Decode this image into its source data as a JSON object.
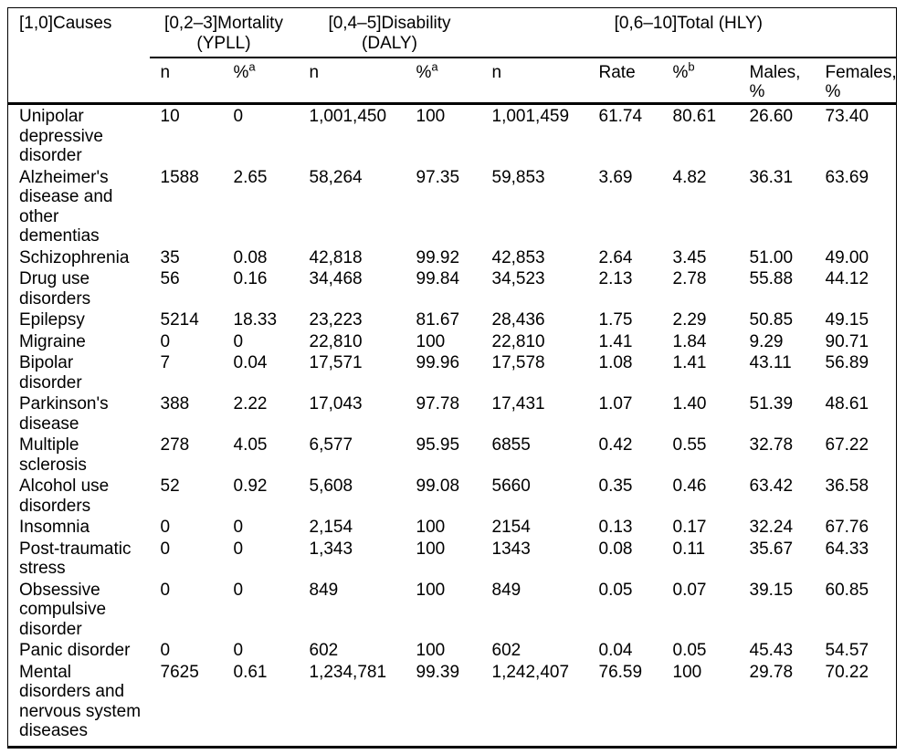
{
  "page": {
    "background": "#ffffff",
    "text_color": "#000000",
    "rule_color": "#000000"
  },
  "table": {
    "causes_header": "[1,0]Causes",
    "groups": [
      {
        "label": "[0,2–3]Mortality\n(YPLL)",
        "span": 2
      },
      {
        "label": "[0,4–5]Disability (DALY)",
        "span": 2
      },
      {
        "label": "[0,6–10]Total (HLY)",
        "span": 5
      }
    ],
    "sub_headers": [
      {
        "label": "n",
        "sup": ""
      },
      {
        "label": "%",
        "sup": "a"
      },
      {
        "label": "n",
        "sup": ""
      },
      {
        "label": "%",
        "sup": "a"
      },
      {
        "label": "n",
        "sup": ""
      },
      {
        "label": "Rate",
        "sup": ""
      },
      {
        "label": "%",
        "sup": "b"
      },
      {
        "label": "Males,\n%",
        "sup": ""
      },
      {
        "label": "Females,\n%",
        "sup": ""
      }
    ],
    "rows": [
      {
        "cause": "Unipolar\ndepressive\ndisorder",
        "values": [
          "10",
          "0",
          "1,001,450",
          "100",
          "1,001,459",
          "61.74",
          "80.61",
          "26.60",
          "73.40"
        ]
      },
      {
        "cause": "Alzheimer's\ndisease and\nother\ndementias",
        "values": [
          "1588",
          "2.65",
          "58,264",
          "97.35",
          "59,853",
          "3.69",
          "4.82",
          "36.31",
          "63.69"
        ]
      },
      {
        "cause": "Schizophrenia",
        "values": [
          "35",
          "0.08",
          "42,818",
          "99.92",
          "42,853",
          "2.64",
          "3.45",
          "51.00",
          "49.00"
        ]
      },
      {
        "cause": "Drug use\ndisorders",
        "values": [
          "56",
          "0.16",
          "34,468",
          "99.84",
          "34,523",
          "2.13",
          "2.78",
          "55.88",
          "44.12"
        ]
      },
      {
        "cause": "Epilepsy",
        "values": [
          "5214",
          "18.33",
          "23,223",
          "81.67",
          "28,436",
          "1.75",
          "2.29",
          "50.85",
          "49.15"
        ]
      },
      {
        "cause": "Migraine",
        "values": [
          "0",
          "0",
          "22,810",
          "100",
          "22,810",
          "1.41",
          "1.84",
          "9.29",
          "90.71"
        ]
      },
      {
        "cause": "Bipolar\ndisorder",
        "values": [
          "7",
          "0.04",
          "17,571",
          "99.96",
          "17,578",
          "1.08",
          "1.41",
          "43.11",
          "56.89"
        ]
      },
      {
        "cause": "Parkinson's\ndisease",
        "values": [
          "388",
          "2.22",
          "17,043",
          "97.78",
          "17,431",
          "1.07",
          "1.40",
          "51.39",
          "48.61"
        ]
      },
      {
        "cause": "Multiple\nsclerosis",
        "values": [
          "278",
          "4.05",
          "6,577",
          "95.95",
          "6855",
          "0.42",
          "0.55",
          "32.78",
          "67.22"
        ]
      },
      {
        "cause": "Alcohol use\ndisorders",
        "values": [
          "52",
          "0.92",
          "5,608",
          "99.08",
          "5660",
          "0.35",
          "0.46",
          "63.42",
          "36.58"
        ]
      },
      {
        "cause": "Insomnia",
        "values": [
          "0",
          "0",
          "2,154",
          "100",
          "2154",
          "0.13",
          "0.17",
          "32.24",
          "67.76"
        ]
      },
      {
        "cause": "Post-traumatic\nstress",
        "values": [
          "0",
          "0",
          "1,343",
          "100",
          "1343",
          "0.08",
          "0.11",
          "35.67",
          "64.33"
        ]
      },
      {
        "cause": "Obsessive\ncompulsive\ndisorder",
        "values": [
          "0",
          "0",
          "849",
          "100",
          "849",
          "0.05",
          "0.07",
          "39.15",
          "60.85"
        ]
      },
      {
        "cause": "Panic disorder",
        "values": [
          "0",
          "0",
          "602",
          "100",
          "602",
          "0.04",
          "0.05",
          "45.43",
          "54.57"
        ]
      },
      {
        "cause": "Mental\ndisorders and\nnervous system\ndiseases",
        "values": [
          "7625",
          "0.61",
          "1,234,781",
          "99.39",
          "1,242,407",
          "76.59",
          "100",
          "29.78",
          "70.22"
        ]
      }
    ]
  }
}
